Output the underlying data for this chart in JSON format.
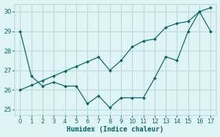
{
  "x": [
    0,
    1,
    2,
    3,
    4,
    5,
    6,
    7,
    8,
    9,
    10,
    11,
    12,
    13,
    14,
    15,
    16,
    17
  ],
  "line_zigzag": [
    29.0,
    26.7,
    26.2,
    26.4,
    26.2,
    26.2,
    25.3,
    25.7,
    25.1,
    25.6,
    25.6,
    25.6,
    26.6,
    27.7,
    27.5,
    29.0,
    30.0,
    29.0
  ],
  "trend_x": [
    0,
    1,
    2,
    3,
    4,
    5,
    6,
    7,
    8,
    9,
    10,
    11,
    12,
    13,
    14,
    15,
    16,
    17
  ],
  "trend_y": [
    26.0,
    26.24,
    26.48,
    26.72,
    26.96,
    27.2,
    27.44,
    27.68,
    27.0,
    27.5,
    28.2,
    28.5,
    28.6,
    29.2,
    29.4,
    29.5,
    30.0,
    30.2
  ],
  "line_color": "#006666",
  "bg_color": "#dff4f4",
  "grid_color": "#b8dada",
  "xlabel": "Humidex (Indice chaleur)",
  "ylim": [
    24.7,
    30.4
  ],
  "xlim": [
    -0.5,
    17.5
  ],
  "yticks": [
    25,
    26,
    27,
    28,
    29,
    30
  ],
  "xticks": [
    0,
    1,
    2,
    3,
    4,
    5,
    6,
    7,
    8,
    9,
    10,
    11,
    12,
    13,
    14,
    15,
    16,
    17
  ]
}
